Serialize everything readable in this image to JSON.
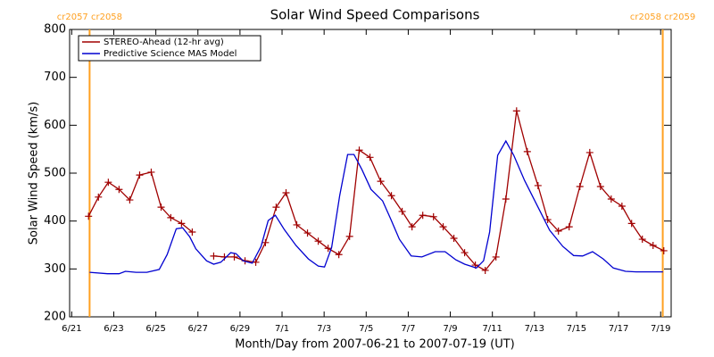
{
  "chart_data": {
    "type": "line",
    "title": "Solar Wind Speed Comparisons",
    "x_label": "Month/Day from 2007-06-21 to 2007-07-19 (UT)",
    "y_label": "Solar Wind Speed (km/s)",
    "xlim": [
      -0.1,
      28.5
    ],
    "xticks": [
      {
        "value": 0,
        "label": "6/21"
      },
      {
        "value": 2,
        "label": "6/23"
      },
      {
        "value": 4,
        "label": "6/25"
      },
      {
        "value": 6,
        "label": "6/27"
      },
      {
        "value": 8,
        "label": "6/29"
      },
      {
        "value": 10,
        "label": "7/1"
      },
      {
        "value": 12,
        "label": "7/3"
      },
      {
        "value": 14,
        "label": "7/5"
      },
      {
        "value": 16,
        "label": "7/7"
      },
      {
        "value": 18,
        "label": "7/9"
      },
      {
        "value": 20,
        "label": "7/11"
      },
      {
        "value": 22,
        "label": "7/13"
      },
      {
        "value": 24,
        "label": "7/15"
      },
      {
        "value": 26,
        "label": "7/17"
      },
      {
        "value": 28,
        "label": "7/19"
      }
    ],
    "ylim": [
      200,
      800
    ],
    "yticks": [
      200,
      300,
      400,
      500,
      600,
      700,
      800
    ],
    "legend": "upper left",
    "reference_lines": [
      {
        "x": 0.85,
        "label": "cr2057 cr2058",
        "color": "#ffa020"
      },
      {
        "x": 28.1,
        "label": "cr2058 cr2059",
        "color": "#ffa020"
      }
    ],
    "series": [
      {
        "name": "STEREO-Ahead (12-hr avg)",
        "color": "#a00000",
        "markers": true,
        "x": [
          0.8,
          1.27,
          1.74,
          2.25,
          2.76,
          3.23,
          3.78,
          4.25,
          4.71,
          5.22,
          5.73,
          null,
          6.75,
          7.26,
          7.73,
          8.24,
          8.75,
          9.21,
          9.72,
          10.19,
          10.7,
          11.21,
          11.72,
          12.19,
          12.7,
          13.21,
          13.67,
          14.18,
          14.69,
          15.2,
          15.71,
          16.18,
          16.69,
          17.2,
          17.66,
          18.17,
          18.68,
          19.19,
          19.66,
          20.17,
          20.64,
          21.15,
          21.66,
          22.17,
          22.63,
          23.14,
          23.65,
          24.16,
          24.63,
          25.14,
          25.65,
          26.16,
          26.62,
          27.13,
          27.64,
          28.15
        ],
        "values": [
          410,
          450,
          481,
          466,
          444,
          496,
          502,
          429,
          407,
          395,
          377,
          null,
          327,
          325,
          325,
          317,
          314,
          355,
          429,
          459,
          392,
          375,
          358,
          343,
          330,
          368,
          548,
          533,
          483,
          453,
          420,
          388,
          412,
          409,
          388,
          364,
          334,
          308,
          297,
          325,
          446,
          630,
          545,
          474,
          403,
          379,
          388,
          472,
          543,
          472,
          446,
          431,
          395,
          362,
          349,
          338
        ]
      },
      {
        "name": "Predictive Science MAS Model",
        "color": "#0000d0",
        "markers": false,
        "x": [
          0.85,
          1.7,
          2.25,
          2.55,
          3.06,
          3.57,
          4.16,
          4.54,
          4.97,
          5.27,
          5.61,
          5.9,
          6.41,
          6.75,
          7.09,
          7.56,
          7.81,
          8.15,
          8.58,
          9.0,
          9.34,
          9.68,
          10.11,
          10.66,
          11.25,
          11.72,
          12.02,
          12.36,
          12.74,
          13.12,
          13.42,
          13.8,
          14.23,
          14.78,
          15.16,
          15.58,
          16.14,
          16.65,
          17.28,
          17.75,
          18.26,
          18.68,
          19.24,
          19.58,
          19.87,
          20.25,
          20.64,
          21.02,
          21.53,
          22.17,
          22.72,
          23.35,
          23.86,
          24.29,
          24.76,
          25.27,
          25.75,
          26.33,
          26.84,
          28.11
        ],
        "values": [
          293,
          290,
          290,
          295,
          293,
          293,
          299,
          330,
          384,
          386,
          367,
          342,
          317,
          310,
          314,
          334,
          332,
          317,
          312,
          347,
          401,
          412,
          382,
          349,
          321,
          306,
          304,
          345,
          453,
          539,
          539,
          507,
          466,
          442,
          405,
          362,
          327,
          325,
          336,
          336,
          319,
          310,
          302,
          317,
          377,
          537,
          567,
          537,
          485,
          429,
          381,
          347,
          328,
          327,
          336,
          321,
          302,
          295,
          294,
          294
        ]
      }
    ]
  }
}
